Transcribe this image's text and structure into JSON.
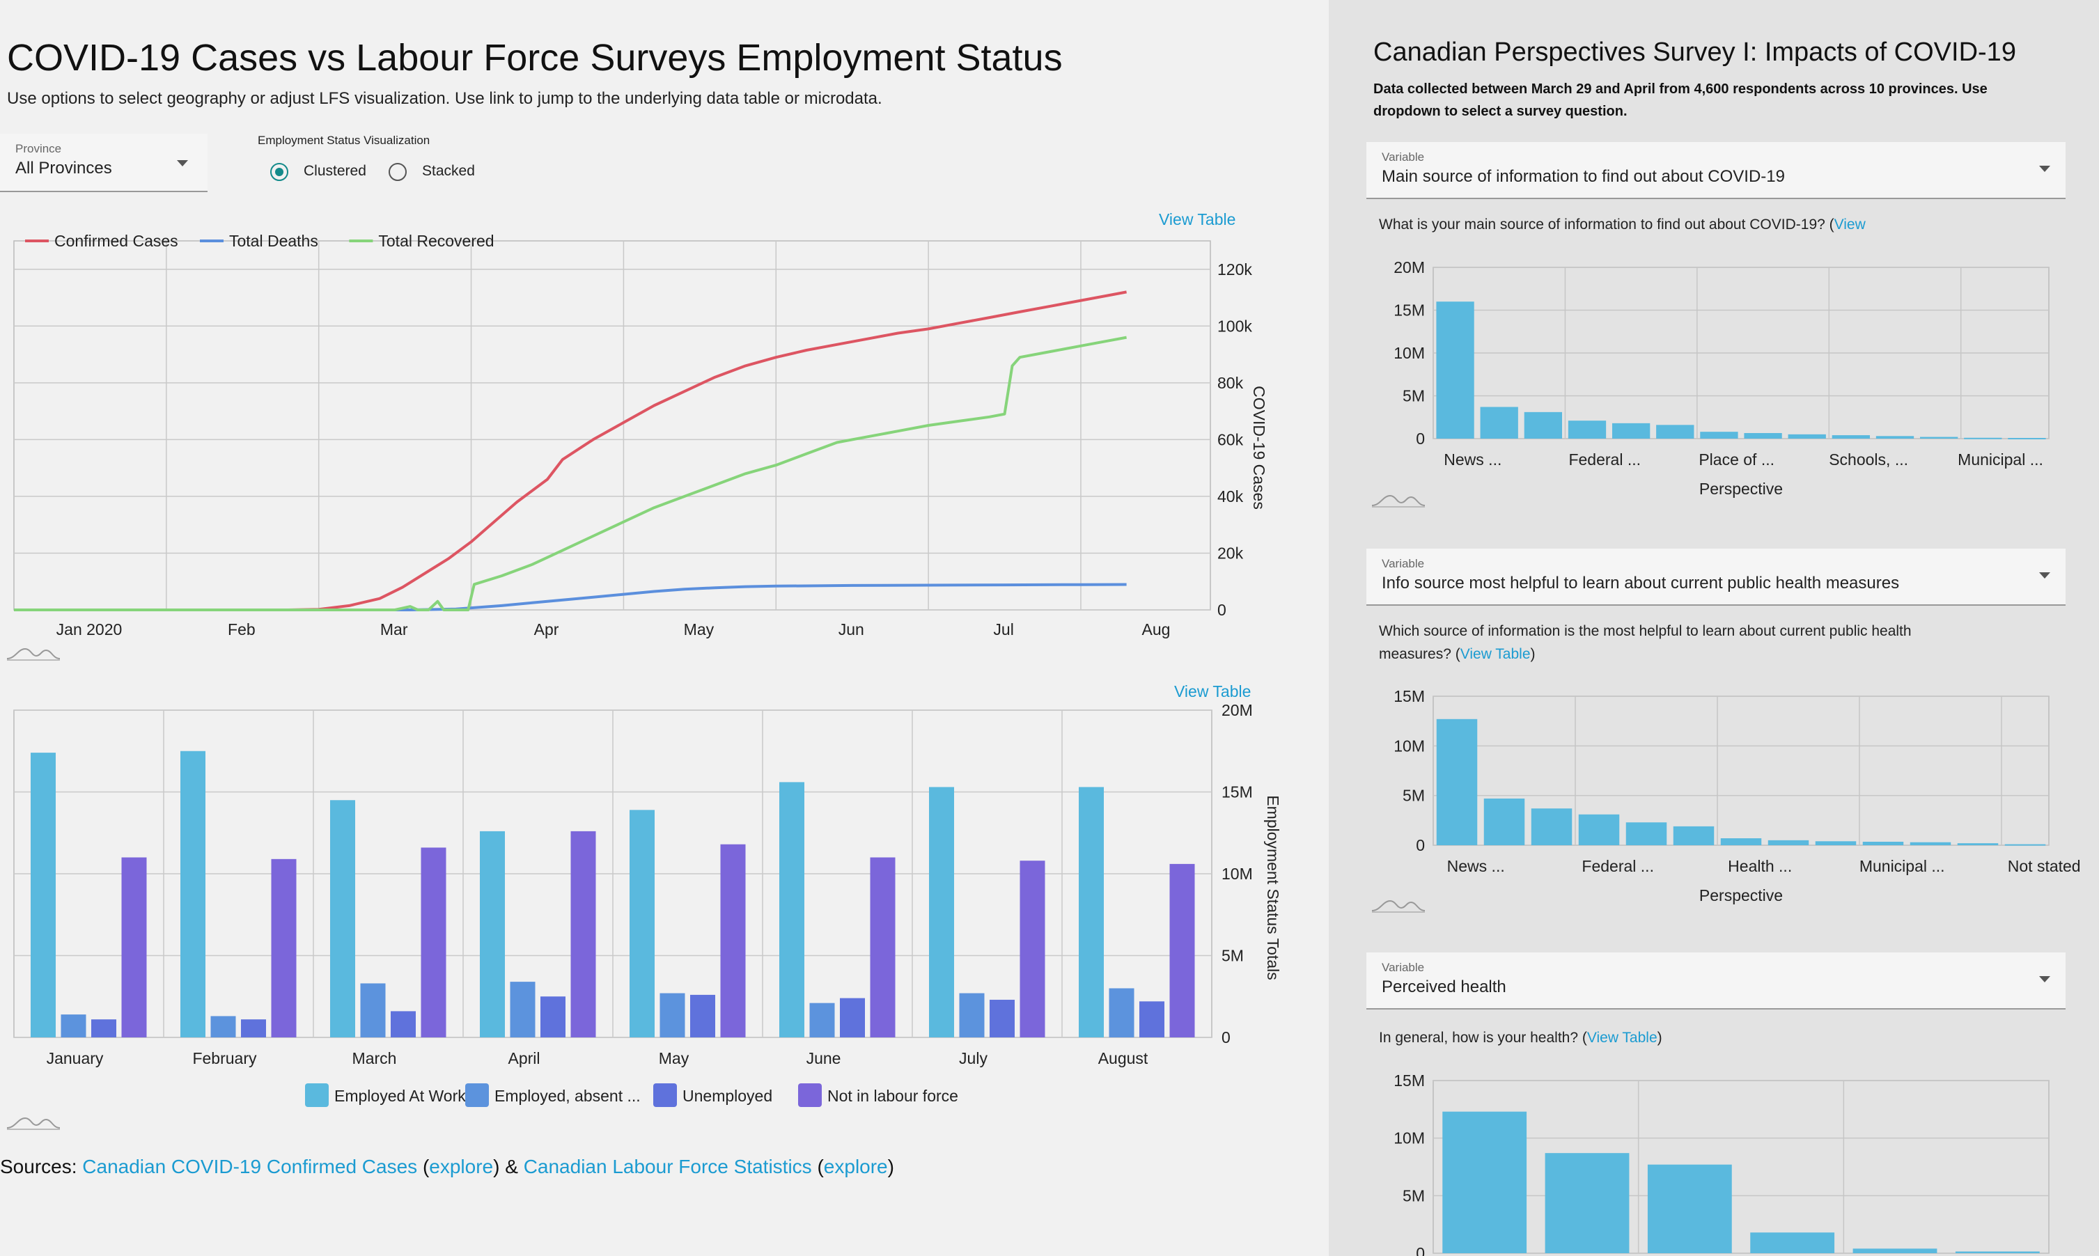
{
  "header": {
    "title": "COVID-19 Cases vs Labour Force Surveys Employment Status",
    "subtitle": "Use options to select geography or adjust LFS visualization. Use link to jump to the underlying data table or microdata."
  },
  "controls": {
    "province_label": "Province",
    "province_value": "All Provinces",
    "viz_label": "Employment Status Visualization",
    "option_clustered": "Clustered",
    "option_stacked": "Stacked",
    "selected": "Clustered"
  },
  "view_table_label": "View Table",
  "sources": {
    "prefix": "Sources: ",
    "link1": "Canadian COVID-19 Confirmed Cases",
    "explore": "explore",
    "amp": " & ",
    "link2": "Canadian Labour Force Statistics",
    "open": "(",
    "close": ")"
  },
  "right": {
    "title": "Canadian Perspectives Survey I: Impacts of COVID-19",
    "description": "Data collected between March 29 and April from 4,600 respondents across 10 provinces. Use dropdown to select a survey question.",
    "variable_label": "Variable",
    "view_table_text": "View Table",
    "view_text": "View",
    "panels": [
      {
        "variable": "Main source of information to find out about COVID-19",
        "question": "What is your main source of information to find out about COVID-19? ("
      },
      {
        "variable": "Info source most helpful to learn about current public health measures",
        "question": "Which source of information is the most helpful to learn about current public health measures? ("
      },
      {
        "variable": "Perceived health",
        "question": "In general, how is your health? ("
      }
    ]
  },
  "colors": {
    "confirmed": "#dd5562",
    "deaths": "#5b8fdd",
    "recovered": "#86d47a",
    "employed_at_work": "#5ab9de",
    "employed_absent": "#5c93dd",
    "unemployed": "#5f72dc",
    "not_in_lf": "#7b66da",
    "survey_bar": "#5ab9de"
  },
  "chart_data": [
    {
      "type": "line",
      "title": "",
      "xlabel": "",
      "ylabel": "COVID-19 Cases",
      "x_ticks": [
        "Jan 2020",
        "Feb",
        "Mar",
        "Apr",
        "May",
        "Jun",
        "Jul",
        "Aug"
      ],
      "x_domain_months": [
        0,
        7.85
      ],
      "y_ticks": [
        "0",
        "20k",
        "40k",
        "60k",
        "80k",
        "100k",
        "120k"
      ],
      "ylim": [
        0,
        130000
      ],
      "legend": "top-left",
      "series": [
        {
          "name": "Confirmed Cases",
          "key": "confirmed",
          "points": [
            [
              0,
              0
            ],
            [
              1,
              0
            ],
            [
              1.8,
              0
            ],
            [
              2.0,
              200
            ],
            [
              2.2,
              1500
            ],
            [
              2.4,
              4000
            ],
            [
              2.55,
              8000
            ],
            [
              2.7,
              13000
            ],
            [
              2.85,
              18000
            ],
            [
              3.0,
              24000
            ],
            [
              3.15,
              31000
            ],
            [
              3.3,
              38000
            ],
            [
              3.5,
              46000
            ],
            [
              3.6,
              53000
            ],
            [
              3.8,
              60000
            ],
            [
              4.0,
              66000
            ],
            [
              4.2,
              72000
            ],
            [
              4.4,
              77000
            ],
            [
              4.6,
              82000
            ],
            [
              4.8,
              86000
            ],
            [
              5.0,
              89000
            ],
            [
              5.2,
              91500
            ],
            [
              5.4,
              93500
            ],
            [
              5.6,
              95500
            ],
            [
              5.8,
              97500
            ],
            [
              6.0,
              99000
            ],
            [
              6.2,
              101000
            ],
            [
              6.4,
              103000
            ],
            [
              6.6,
              105000
            ],
            [
              6.8,
              107000
            ],
            [
              7.0,
              109000
            ],
            [
              7.2,
              111000
            ],
            [
              7.3,
              112000
            ]
          ]
        },
        {
          "name": "Total Deaths",
          "key": "deaths",
          "points": [
            [
              0,
              0
            ],
            [
              2.6,
              0
            ],
            [
              2.9,
              300
            ],
            [
              3.0,
              700
            ],
            [
              3.2,
              1500
            ],
            [
              3.4,
              2500
            ],
            [
              3.6,
              3500
            ],
            [
              3.8,
              4500
            ],
            [
              4.0,
              5500
            ],
            [
              4.2,
              6500
            ],
            [
              4.4,
              7300
            ],
            [
              4.6,
              7800
            ],
            [
              4.8,
              8200
            ],
            [
              5.0,
              8400
            ],
            [
              5.5,
              8600
            ],
            [
              6.0,
              8700
            ],
            [
              6.5,
              8800
            ],
            [
              7.0,
              8900
            ],
            [
              7.3,
              8950
            ]
          ]
        },
        {
          "name": "Total Recovered",
          "key": "recovered",
          "points": [
            [
              0,
              0
            ],
            [
              2.5,
              0
            ],
            [
              2.6,
              1200
            ],
            [
              2.65,
              0
            ],
            [
              2.72,
              0
            ],
            [
              2.78,
              3000
            ],
            [
              2.82,
              0
            ],
            [
              2.98,
              0
            ],
            [
              3.02,
              9000
            ],
            [
              3.2,
              12000
            ],
            [
              3.4,
              16000
            ],
            [
              3.6,
              21000
            ],
            [
              3.8,
              26000
            ],
            [
              4.0,
              31000
            ],
            [
              4.2,
              36000
            ],
            [
              4.4,
              40000
            ],
            [
              4.6,
              44000
            ],
            [
              4.8,
              48000
            ],
            [
              5.0,
              51000
            ],
            [
              5.2,
              55000
            ],
            [
              5.4,
              59000
            ],
            [
              5.6,
              61000
            ],
            [
              5.8,
              63000
            ],
            [
              6.0,
              65000
            ],
            [
              6.2,
              66500
            ],
            [
              6.4,
              68000
            ],
            [
              6.5,
              69000
            ],
            [
              6.55,
              86000
            ],
            [
              6.6,
              89000
            ],
            [
              6.8,
              91000
            ],
            [
              7.0,
              93000
            ],
            [
              7.2,
              95000
            ],
            [
              7.3,
              96000
            ]
          ]
        }
      ]
    },
    {
      "type": "bar",
      "title": "",
      "xlabel": "",
      "ylabel": "Employment Status Totals",
      "ylim": [
        0,
        20000000
      ],
      "y_ticks": [
        "0",
        "5M",
        "10M",
        "15M",
        "20M"
      ],
      "categories": [
        "January",
        "February",
        "March",
        "April",
        "May",
        "June",
        "July",
        "August"
      ],
      "legend": "bottom",
      "series": [
        {
          "name": "Employed At Work",
          "key": "employed_at_work",
          "values": [
            17400000,
            17500000,
            14500000,
            12600000,
            13900000,
            15600000,
            15300000,
            15300000
          ]
        },
        {
          "name": "Employed, absent ...",
          "key": "employed_absent",
          "values": [
            1400000,
            1300000,
            3300000,
            3400000,
            2700000,
            2100000,
            2700000,
            3000000
          ]
        },
        {
          "name": "Unemployed",
          "key": "unemployed",
          "values": [
            1100000,
            1100000,
            1600000,
            2500000,
            2600000,
            2400000,
            2300000,
            2200000
          ]
        },
        {
          "name": "Not in labour force",
          "key": "not_in_lf",
          "values": [
            11000000,
            10900000,
            11600000,
            12600000,
            11800000,
            11000000,
            10800000,
            10600000
          ]
        }
      ]
    },
    {
      "type": "bar",
      "title": "",
      "xlabel": "Perspective",
      "ylabel": "",
      "ylim": [
        0,
        20000000
      ],
      "y_ticks": [
        "0",
        "5M",
        "10M",
        "15M",
        "20M"
      ],
      "category_labels_shown": [
        "News ...",
        "Federal ...",
        "Place of ...",
        "Schools, ...",
        "Municipal ..."
      ],
      "values": [
        16000000,
        3700000,
        3100000,
        2100000,
        1800000,
        1600000,
        800000,
        650000,
        500000,
        400000,
        300000,
        200000,
        100000,
        80000
      ]
    },
    {
      "type": "bar",
      "title": "",
      "xlabel": "Perspective",
      "ylabel": "",
      "ylim": [
        0,
        15000000
      ],
      "y_ticks": [
        "0",
        "5M",
        "10M",
        "15M"
      ],
      "category_labels_shown": [
        "News ...",
        "Federal ...",
        "Health ...",
        "Municipal ...",
        "Not stated"
      ],
      "values": [
        12700000,
        4700000,
        3700000,
        3100000,
        2300000,
        1900000,
        700000,
        500000,
        400000,
        350000,
        300000,
        200000,
        100000
      ]
    },
    {
      "type": "bar",
      "title": "",
      "xlabel": "",
      "ylabel": "",
      "ylim": [
        0,
        15000000
      ],
      "y_ticks": [
        "0",
        "5M",
        "10M",
        "15M"
      ],
      "values": [
        12300000,
        8700000,
        7700000,
        1800000,
        400000,
        150000
      ]
    }
  ]
}
